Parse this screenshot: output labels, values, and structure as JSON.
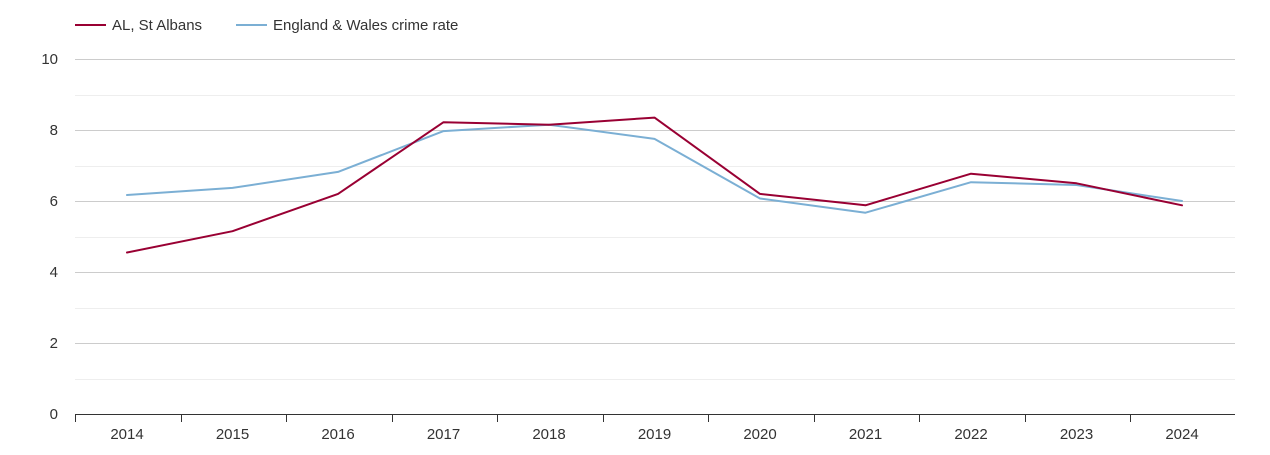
{
  "chart_data": {
    "type": "line",
    "title": "",
    "xlabel": "",
    "ylabel": "",
    "categories": [
      "2014",
      "2015",
      "2016",
      "2017",
      "2018",
      "2019",
      "2020",
      "2021",
      "2022",
      "2023",
      "2024"
    ],
    "ylim": [
      0,
      10
    ],
    "yticks": [
      0,
      2,
      4,
      6,
      8,
      10
    ],
    "grid": true,
    "legend_position": "top-left",
    "series": [
      {
        "name": "AL, St Albans",
        "color": "#990033",
        "values": [
          4.55,
          5.15,
          6.2,
          8.22,
          8.15,
          8.35,
          6.2,
          5.88,
          6.77,
          6.5,
          5.88
        ]
      },
      {
        "name": "England & Wales crime rate",
        "color": "#7BAFD4",
        "values": [
          6.17,
          6.37,
          6.82,
          7.97,
          8.15,
          7.75,
          6.07,
          5.67,
          6.53,
          6.45,
          6.0
        ]
      }
    ]
  }
}
